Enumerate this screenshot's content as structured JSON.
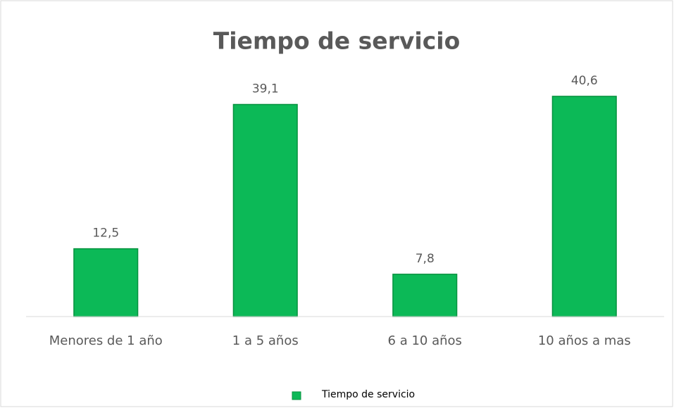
{
  "chart_data": {
    "type": "bar",
    "title": "Tiempo de servicio",
    "categories": [
      "Menores de 1 año",
      "1 a 5 años",
      "6 a 10 años",
      "10 años a mas"
    ],
    "series": [
      {
        "name": "Tiempo de servicio",
        "color": "#0cb957",
        "values": [
          12.5,
          39.1,
          7.8,
          40.6
        ],
        "value_labels": [
          "12,5",
          "39,1",
          "7,8",
          "40,6"
        ]
      }
    ],
    "ylim": [
      0,
      45
    ],
    "legend": "bottom"
  }
}
